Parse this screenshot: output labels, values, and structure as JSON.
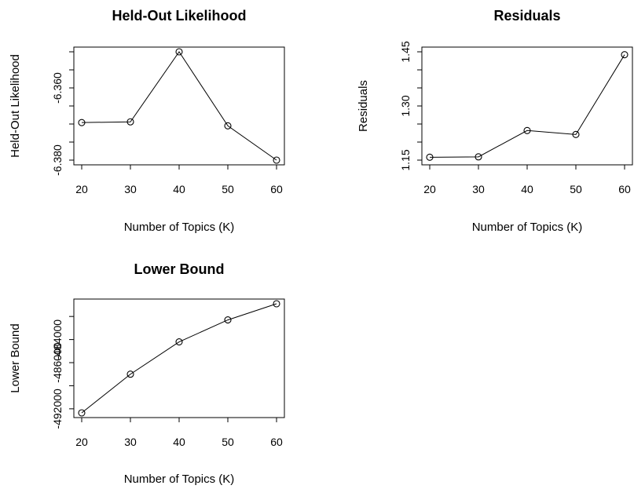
{
  "chart_data": [
    {
      "type": "line",
      "title": "Held-Out Likelihood",
      "xlabel": "Number of Topics (K)",
      "ylabel": "Held-Out Likelihood",
      "x": [
        20,
        30,
        40,
        50,
        60
      ],
      "values": [
        -6.3696,
        -6.3694,
        -6.35,
        -6.3705,
        -6.38
      ],
      "xticks": [
        20,
        30,
        40,
        50,
        60
      ],
      "xtick_labels": [
        "20",
        "30",
        "40",
        "50",
        "60"
      ],
      "yticks": [
        -6.38,
        -6.375,
        -6.37,
        -6.365,
        -6.36,
        -6.355,
        -6.35
      ],
      "ytick_labels": [
        "-6.380",
        "",
        "",
        "",
        "-6.360",
        "",
        ""
      ],
      "xlim": [
        20,
        60
      ],
      "ylim": [
        -6.38,
        -6.35
      ],
      "grid": false,
      "marker": "open-circle"
    },
    {
      "type": "line",
      "title": "Residuals",
      "xlabel": "Number of Topics (K)",
      "ylabel": "Residuals",
      "x": [
        20,
        30,
        40,
        50,
        60
      ],
      "values": [
        1.158,
        1.159,
        1.232,
        1.221,
        1.442
      ],
      "xticks": [
        20,
        30,
        40,
        50,
        60
      ],
      "xtick_labels": [
        "20",
        "30",
        "40",
        "50",
        "60"
      ],
      "yticks": [
        1.15,
        1.2,
        1.25,
        1.3,
        1.35,
        1.4,
        1.45
      ],
      "ytick_labels": [
        "1.15",
        "",
        "",
        "1.30",
        "",
        "",
        "1.45"
      ],
      "xlim": [
        20,
        60
      ],
      "ylim": [
        1.15,
        1.45
      ],
      "grid": false,
      "marker": "open-circle"
    },
    {
      "type": "line",
      "title": "Lower Bound",
      "xlabel": "Number of Topics (K)",
      "ylabel": "Lower Bound",
      "x": [
        20,
        30,
        40,
        50,
        60
      ],
      "values": [
        -492350,
        -489000,
        -486200,
        -484300,
        -482900
      ],
      "xticks": [
        20,
        30,
        40,
        50,
        60
      ],
      "xtick_labels": [
        "20",
        "30",
        "40",
        "50",
        "60"
      ],
      "yticks": [
        -492000,
        -490000,
        -488000,
        -486000,
        -484000,
        -482000
      ],
      "ytick_labels": [
        "-492000",
        "",
        "-486000",
        "-484000",
        "",
        ""
      ],
      "xlim": [
        20,
        60
      ],
      "ylim": [
        -492350,
        -482900
      ],
      "grid": false,
      "marker": "open-circle"
    }
  ]
}
